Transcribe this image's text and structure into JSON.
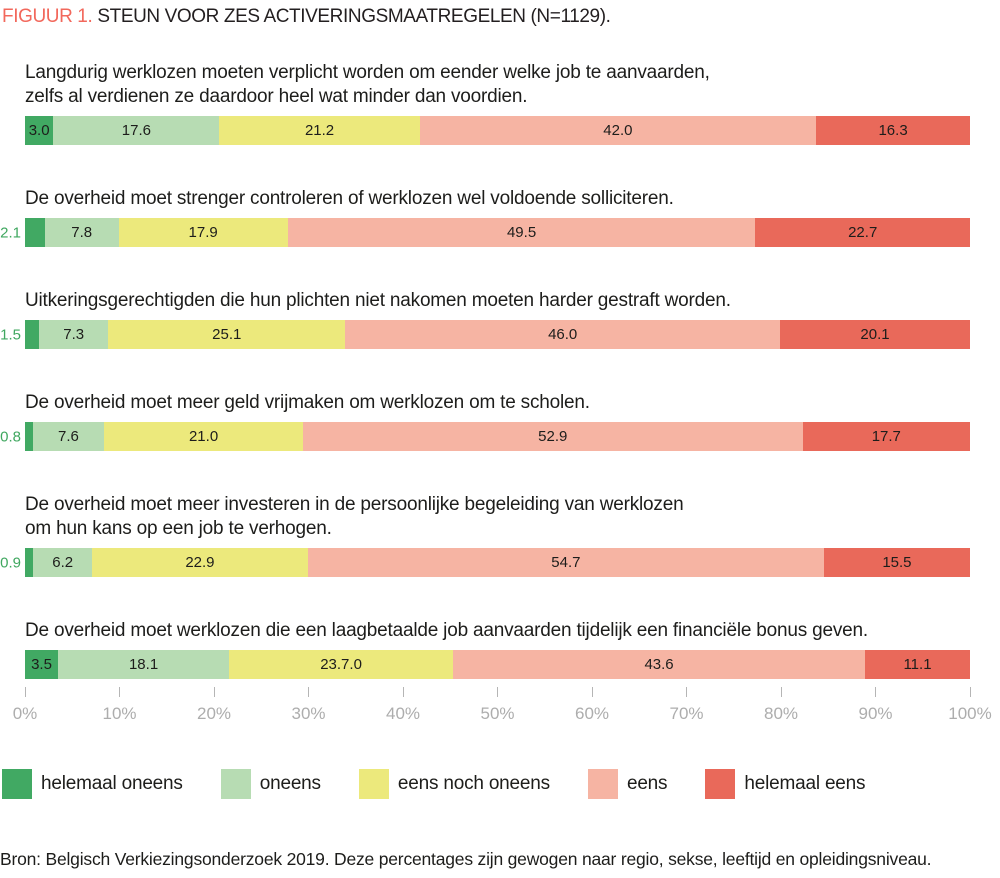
{
  "figure": {
    "label": "FIGUUR 1.",
    "title": "STEUN VOOR ZES ACTIVERINGSMAATREGELEN (N=1129)."
  },
  "colors": {
    "figure_label": "#f2685c",
    "title_text": "#231f20",
    "question_text": "#1d1d1b",
    "outside_value_label": "#3fa75f",
    "axis_tick": "#b5b5b5",
    "axis_label": "#adadad",
    "segments": [
      "#41a963",
      "#b7dcb3",
      "#ece97c",
      "#f6b4a3",
      "#e9695a"
    ]
  },
  "chart_data": {
    "type": "bar",
    "orientation": "horizontal_stacked",
    "unit": "percent",
    "n_label": "N=1129",
    "title": "STEUN VOOR ZES ACTIVERINGSMAATREGELEN (N=1129).",
    "categories": [
      "helemaal oneens",
      "oneens",
      "eens noch oneens",
      "eens",
      "helemaal eens"
    ],
    "x_ticks": [
      "0%",
      "10%",
      "20%",
      "30%",
      "40%",
      "50%",
      "60%",
      "70%",
      "80%",
      "90%",
      "100%"
    ],
    "xlim": [
      0,
      100
    ],
    "legend_position": "bottom",
    "grid": false,
    "rows": [
      {
        "question_lines": [
          "Langdurig werklozen moeten verplicht worden om eender welke job te aanvaarden,",
          "zelfs al verdienen ze daardoor heel wat minder dan voordien."
        ],
        "values": [
          3.0,
          17.6,
          21.2,
          42.0,
          16.3
        ],
        "value_labels": [
          "3.0",
          "17.6",
          "21.2",
          "42.0",
          "16.3"
        ],
        "first_label_outside": false
      },
      {
        "question_lines": [
          "De overheid moet strenger controleren of werklozen wel voldoende solliciteren."
        ],
        "values": [
          2.1,
          7.8,
          17.9,
          49.5,
          22.7
        ],
        "value_labels": [
          "2.1",
          "7.8",
          "17.9",
          "49.5",
          "22.7"
        ],
        "first_label_outside": true
      },
      {
        "question_lines": [
          "Uitkeringsgerechtigden die hun plichten niet nakomen moeten harder gestraft worden."
        ],
        "values": [
          1.5,
          7.3,
          25.1,
          46.0,
          20.1
        ],
        "value_labels": [
          "1.5",
          "7.3",
          "25.1",
          "46.0",
          "20.1"
        ],
        "first_label_outside": true
      },
      {
        "question_lines": [
          "De overheid moet meer geld vrijmaken om werklozen om te scholen."
        ],
        "values": [
          0.8,
          7.6,
          21.0,
          52.9,
          17.7
        ],
        "value_labels": [
          "0.8",
          "7.6",
          "21.0",
          "52.9",
          "17.7"
        ],
        "first_label_outside": true
      },
      {
        "question_lines": [
          "De overheid moet meer investeren in de persoonlijke begeleiding van werklozen",
          "om hun kans op een job te verhogen."
        ],
        "values": [
          0.9,
          6.2,
          22.9,
          54.7,
          15.5
        ],
        "value_labels": [
          "0.9",
          "6.2",
          "22.9",
          "54.7",
          "15.5"
        ],
        "first_label_outside": true
      },
      {
        "question_lines": [
          "De overheid moet werklozen die een laagbetaalde job aanvaarden tijdelijk een financiële bonus geven."
        ],
        "values": [
          3.5,
          18.1,
          23.7,
          43.6,
          11.1
        ],
        "value_labels": [
          "3.5",
          "18.1",
          "23.7.0",
          "43.6",
          "11.1"
        ],
        "first_label_outside": false
      }
    ]
  },
  "source": "Bron: Belgisch Verkiezingsonderzoek 2019. Deze percentages zijn gewogen naar regio, sekse, leeftijd en opleidingsniveau."
}
